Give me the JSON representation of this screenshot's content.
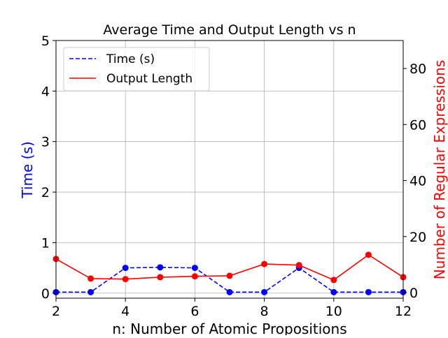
{
  "chart_data": {
    "type": "line",
    "title": "Average Time and Output Length vs n",
    "xlabel": "n: Number of Atomic Propositions",
    "ylabel_left": "Time (s)",
    "ylabel_right": "Number of Regular Expressions",
    "xlim": [
      2,
      12
    ],
    "ylim_left": [
      -0.1,
      5
    ],
    "ylim_right": [
      -2,
      90
    ],
    "xticks": [
      2,
      4,
      6,
      8,
      10,
      12
    ],
    "yticks_left": [
      0,
      1,
      2,
      3,
      4,
      5
    ],
    "yticks_right": [
      0,
      20,
      40,
      60,
      80
    ],
    "grid": true,
    "legend_position": "upper-left",
    "x": [
      2,
      3,
      4,
      5,
      6,
      7,
      8,
      9,
      10,
      11,
      12
    ],
    "series": [
      {
        "name": "Time (s)",
        "axis": "left",
        "color": "#0000ff",
        "linestyle": "dashed",
        "values": [
          0.02,
          0.02,
          0.5,
          0.51,
          0.5,
          0.02,
          0.02,
          0.5,
          0.02,
          0.02,
          0.02
        ]
      },
      {
        "name": "Output Length",
        "axis": "right",
        "color": "#ff0000",
        "linestyle": "solid",
        "values": [
          12,
          5,
          4.8,
          5.5,
          5.8,
          6,
          10.2,
          9.8,
          4.5,
          13.5,
          5.5
        ]
      }
    ]
  }
}
